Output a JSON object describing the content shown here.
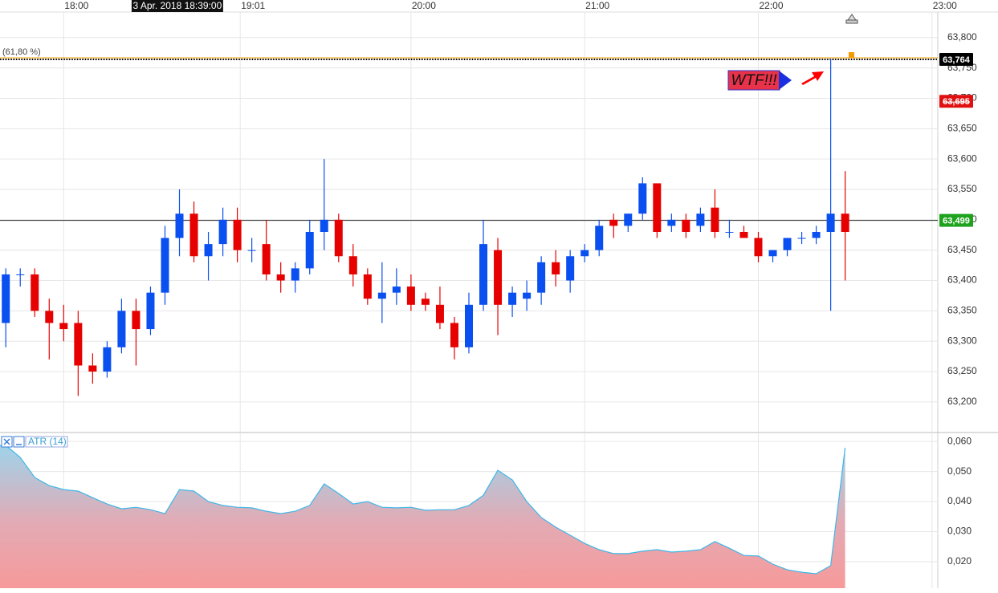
{
  "chart_data": [
    {
      "type": "candlestick",
      "x": [
        "17:40",
        "17:45",
        "17:50",
        "17:55",
        "18:00",
        "18:05",
        "18:10",
        "18:15",
        "18:20",
        "18:25",
        "18:30",
        "18:35",
        "18:40",
        "18:45",
        "18:50",
        "18:55",
        "19:00",
        "19:05",
        "19:10",
        "19:15",
        "19:20",
        "19:25",
        "19:30",
        "19:35",
        "19:40",
        "19:45",
        "19:50",
        "19:55",
        "20:00",
        "20:05",
        "20:10",
        "20:15",
        "20:20",
        "20:25",
        "20:30",
        "20:35",
        "20:40",
        "20:45",
        "20:50",
        "20:55",
        "21:00",
        "21:05",
        "21:10",
        "21:15",
        "21:20",
        "21:25",
        "21:30",
        "21:35",
        "21:40",
        "21:45",
        "21:50",
        "21:55",
        "22:00",
        "22:05",
        "22:10",
        "22:15",
        "22:20",
        "22:25",
        "22:30"
      ],
      "open": [
        63.33,
        63.41,
        63.41,
        63.35,
        63.33,
        63.33,
        63.26,
        63.25,
        63.29,
        63.35,
        63.32,
        63.38,
        63.47,
        63.51,
        63.44,
        63.46,
        63.5,
        63.45,
        63.46,
        63.41,
        63.4,
        63.42,
        63.48,
        63.5,
        63.44,
        63.41,
        63.37,
        63.38,
        63.39,
        63.37,
        63.36,
        63.33,
        63.29,
        63.36,
        63.45,
        63.36,
        63.37,
        63.38,
        63.43,
        63.4,
        63.44,
        63.45,
        63.5,
        63.49,
        63.51,
        63.56,
        63.49,
        63.5,
        63.49,
        63.52,
        63.48,
        63.48,
        63.47,
        63.44,
        63.45,
        63.47,
        63.47,
        63.48,
        63.51
      ],
      "high": [
        63.42,
        63.42,
        63.42,
        63.37,
        63.36,
        63.35,
        63.28,
        63.3,
        63.37,
        63.37,
        63.39,
        63.49,
        63.55,
        63.53,
        63.48,
        63.52,
        63.52,
        63.47,
        63.5,
        63.43,
        63.43,
        63.5,
        63.6,
        63.51,
        63.46,
        63.42,
        63.43,
        63.42,
        63.41,
        63.38,
        63.39,
        63.34,
        63.38,
        63.5,
        63.47,
        63.39,
        63.4,
        63.44,
        63.45,
        63.45,
        63.46,
        63.5,
        63.51,
        63.51,
        63.57,
        63.56,
        63.51,
        63.51,
        63.52,
        63.55,
        63.5,
        63.49,
        63.48,
        63.45,
        63.47,
        63.48,
        63.49,
        63.764,
        63.58
      ],
      "low": [
        63.29,
        63.39,
        63.34,
        63.27,
        63.3,
        63.21,
        63.23,
        63.24,
        63.28,
        63.26,
        63.31,
        63.36,
        63.44,
        63.43,
        63.4,
        63.44,
        63.43,
        63.43,
        63.4,
        63.38,
        63.38,
        63.41,
        63.45,
        63.43,
        63.39,
        63.36,
        63.33,
        63.36,
        63.35,
        63.35,
        63.32,
        63.27,
        63.28,
        63.35,
        63.31,
        63.34,
        63.35,
        63.36,
        63.39,
        63.38,
        63.43,
        63.44,
        63.47,
        63.48,
        63.5,
        63.47,
        63.48,
        63.47,
        63.48,
        63.47,
        63.47,
        63.47,
        63.43,
        63.43,
        63.44,
        63.46,
        63.46,
        63.35,
        63.4
      ],
      "close": [
        63.41,
        63.41,
        63.35,
        63.33,
        63.32,
        63.26,
        63.25,
        63.29,
        63.35,
        63.32,
        63.38,
        63.47,
        63.51,
        63.44,
        63.46,
        63.5,
        63.45,
        63.45,
        63.41,
        63.4,
        63.42,
        63.48,
        63.5,
        63.44,
        63.41,
        63.37,
        63.38,
        63.39,
        63.36,
        63.36,
        63.33,
        63.29,
        63.36,
        63.46,
        63.36,
        63.38,
        63.38,
        63.43,
        63.41,
        63.44,
        63.45,
        63.49,
        63.49,
        63.51,
        63.56,
        63.48,
        63.5,
        63.48,
        63.51,
        63.48,
        63.48,
        63.47,
        63.44,
        63.45,
        63.47,
        63.47,
        63.48,
        63.51,
        63.48
      ],
      "up_color": "#0a4ff0",
      "down_color": "#e60000",
      "xlim": [
        "17:38",
        "23:02"
      ],
      "xticks": [
        "18:00",
        "19:01",
        "20:00",
        "21:00",
        "22:00",
        "23:00"
      ],
      "ylim": [
        63.151,
        63.842
      ],
      "yticks": [
        {
          "value": 63.8,
          "label": "63,800"
        },
        {
          "value": 63.75,
          "label": "63,750"
        },
        {
          "value": 63.7,
          "label": "63,700"
        },
        {
          "value": 63.65,
          "label": "63,650"
        },
        {
          "value": 63.6,
          "label": "63,600"
        },
        {
          "value": 63.55,
          "label": "63,550"
        },
        {
          "value": 63.5,
          "label": "63,500"
        },
        {
          "value": 63.45,
          "label": "63,450"
        },
        {
          "value": 63.4,
          "label": "63,400"
        },
        {
          "value": 63.35,
          "label": "63,350"
        },
        {
          "value": 63.3,
          "label": "63,300"
        },
        {
          "value": 63.25,
          "label": "63,250"
        },
        {
          "value": 63.2,
          "label": "63,200"
        }
      ],
      "grid": true,
      "crosshair": {
        "x": "18:39",
        "label": "3 Apr. 2018 18:39:00"
      },
      "price_lines": [
        {
          "value": 63.764,
          "label": "63,764",
          "color": "#000000",
          "style": "fib",
          "tag": "(61,80 %)"
        },
        {
          "value": 63.695,
          "label": "63,695",
          "color": "#e01010",
          "style": "none"
        },
        {
          "value": 63.499,
          "label": "63,499",
          "color": "#1fa31f",
          "style": "solid"
        }
      ],
      "annotation": "WTF!!!"
    },
    {
      "type": "area",
      "x": [
        "17:40",
        "17:45",
        "17:50",
        "17:55",
        "18:00",
        "18:05",
        "18:10",
        "18:15",
        "18:20",
        "18:25",
        "18:30",
        "18:35",
        "18:40",
        "18:45",
        "18:50",
        "18:55",
        "19:00",
        "19:05",
        "19:10",
        "19:15",
        "19:20",
        "19:25",
        "19:30",
        "19:35",
        "19:40",
        "19:45",
        "19:50",
        "19:55",
        "20:00",
        "20:05",
        "20:10",
        "20:15",
        "20:20",
        "20:25",
        "20:30",
        "20:35",
        "20:40",
        "20:45",
        "20:50",
        "20:55",
        "21:00",
        "21:05",
        "21:10",
        "21:15",
        "21:20",
        "21:25",
        "21:30",
        "21:35",
        "21:40",
        "21:45",
        "21:50",
        "21:55",
        "22:00",
        "22:05",
        "22:10",
        "22:15",
        "22:20",
        "22:25",
        "22:30"
      ],
      "series": [
        {
          "name": "ATR (14)",
          "color": "#3fb6e8",
          "values": [
            0.0587,
            0.0547,
            0.048,
            0.0453,
            0.044,
            0.0435,
            0.0413,
            0.0392,
            0.0376,
            0.0381,
            0.0373,
            0.036,
            0.044,
            0.0435,
            0.04,
            0.0387,
            0.0381,
            0.0379,
            0.0368,
            0.036,
            0.0368,
            0.0387,
            0.0459,
            0.0427,
            0.0392,
            0.04,
            0.0381,
            0.0379,
            0.0381,
            0.0371,
            0.0373,
            0.0373,
            0.0387,
            0.0421,
            0.0504,
            0.0472,
            0.04,
            0.0347,
            0.0315,
            0.0288,
            0.0261,
            0.024,
            0.0227,
            0.0227,
            0.0235,
            0.024,
            0.0232,
            0.0235,
            0.024,
            0.0267,
            0.0245,
            0.0221,
            0.0219,
            0.0192,
            0.0173,
            0.0165,
            0.016,
            0.0187,
            0.0579
          ]
        }
      ],
      "xlim": [
        "17:38",
        "23:02"
      ],
      "ylim": [
        0.0112,
        0.0627
      ],
      "yticks": [
        {
          "value": 0.06,
          "label": "0,060"
        },
        {
          "value": 0.05,
          "label": "0,050"
        },
        {
          "value": 0.04,
          "label": "0,040"
        },
        {
          "value": 0.03,
          "label": "0,030"
        },
        {
          "value": 0.02,
          "label": "0,020"
        }
      ],
      "grid": true
    }
  ]
}
